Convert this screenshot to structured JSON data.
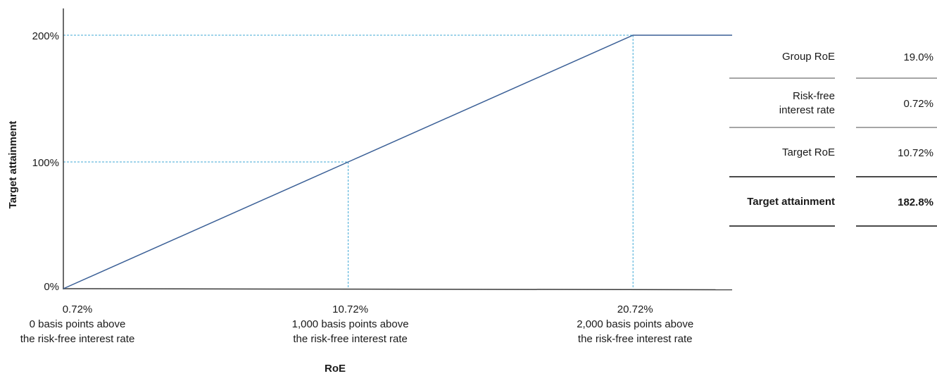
{
  "chart_data": {
    "type": "line",
    "xlabel": "RoE",
    "ylabel": "Target attainment",
    "x_unit": "%",
    "xlim": [
      0.72,
      24.2
    ],
    "ylim": [
      0,
      200
    ],
    "y_ticks": [
      {
        "value": 0,
        "label": "0%"
      },
      {
        "value": 100,
        "label": "100%"
      },
      {
        "value": 200,
        "label": "200%"
      }
    ],
    "x_ticks": [
      {
        "value": 0.72,
        "lines": [
          "0.72%",
          "0 basis points above",
          "the risk-free interest rate"
        ]
      },
      {
        "value": 10.72,
        "lines": [
          "10.72%",
          "1,000 basis points above",
          "the risk-free interest rate"
        ]
      },
      {
        "value": 20.72,
        "lines": [
          "20.72%",
          "2,000 basis points above",
          "the risk-free interest rate"
        ]
      }
    ],
    "series": [
      {
        "x": [
          0.72,
          10.72,
          20.72,
          24.3
        ],
        "y": [
          0,
          100,
          200,
          200
        ],
        "color": "#3a5f96"
      }
    ],
    "reference_points": [
      {
        "x": 10.72,
        "y": 100
      },
      {
        "x": 20.72,
        "y": 200
      }
    ],
    "reference_color": "#3fa9d6",
    "grid": false
  },
  "summary": {
    "rows": [
      {
        "label": "Group RoE",
        "value": "19.0%"
      },
      {
        "label": "Risk-free\ninterest rate",
        "value": "0.72%"
      },
      {
        "label": "Target RoE",
        "value": "10.72%"
      },
      {
        "label": "Target attainment",
        "value": "182.8%"
      }
    ]
  }
}
